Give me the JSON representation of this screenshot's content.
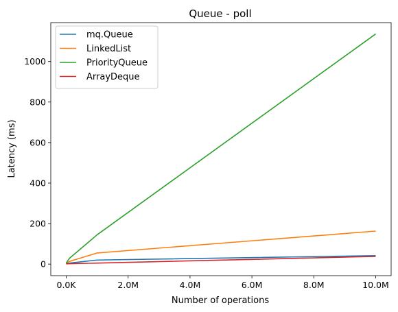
{
  "chart_data": {
    "type": "line",
    "title": "Queue - poll",
    "xlabel": "Number of operations",
    "ylabel": "Latency (ms)",
    "xlim": [
      -500000,
      10500000
    ],
    "ylim": [
      -57,
      1192
    ],
    "xticks": [
      {
        "value": 0,
        "label": "0.0K"
      },
      {
        "value": 2000000,
        "label": "2.0M"
      },
      {
        "value": 4000000,
        "label": "4.0M"
      },
      {
        "value": 6000000,
        "label": "6.0M"
      },
      {
        "value": 8000000,
        "label": "8.0M"
      },
      {
        "value": 10000000,
        "label": "10.0M"
      }
    ],
    "yticks": [
      {
        "value": 0,
        "label": "0"
      },
      {
        "value": 200,
        "label": "200"
      },
      {
        "value": 400,
        "label": "400"
      },
      {
        "value": 600,
        "label": "600"
      },
      {
        "value": 800,
        "label": "800"
      },
      {
        "value": 1000,
        "label": "1000"
      }
    ],
    "grid": false,
    "legend_position": "top-left",
    "series": [
      {
        "name": "mq.Queue",
        "color": "#1f77b4",
        "x": [
          0,
          10000,
          100000,
          1000000,
          10000000
        ],
        "y": [
          1,
          2,
          5,
          20,
          42
        ]
      },
      {
        "name": "LinkedList",
        "color": "#ff7f0e",
        "x": [
          0,
          10000,
          100000,
          1000000,
          10000000
        ],
        "y": [
          2,
          5,
          13,
          55,
          163
        ]
      },
      {
        "name": "PriorityQueue",
        "color": "#2ca02c",
        "x": [
          0,
          10000,
          100000,
          1000000,
          10000000
        ],
        "y": [
          3,
          8,
          28,
          145,
          1136
        ]
      },
      {
        "name": "ArrayDeque",
        "color": "#d62728",
        "x": [
          0,
          10000,
          100000,
          1000000,
          10000000
        ],
        "y": [
          0,
          1,
          2,
          5,
          38
        ]
      }
    ]
  }
}
